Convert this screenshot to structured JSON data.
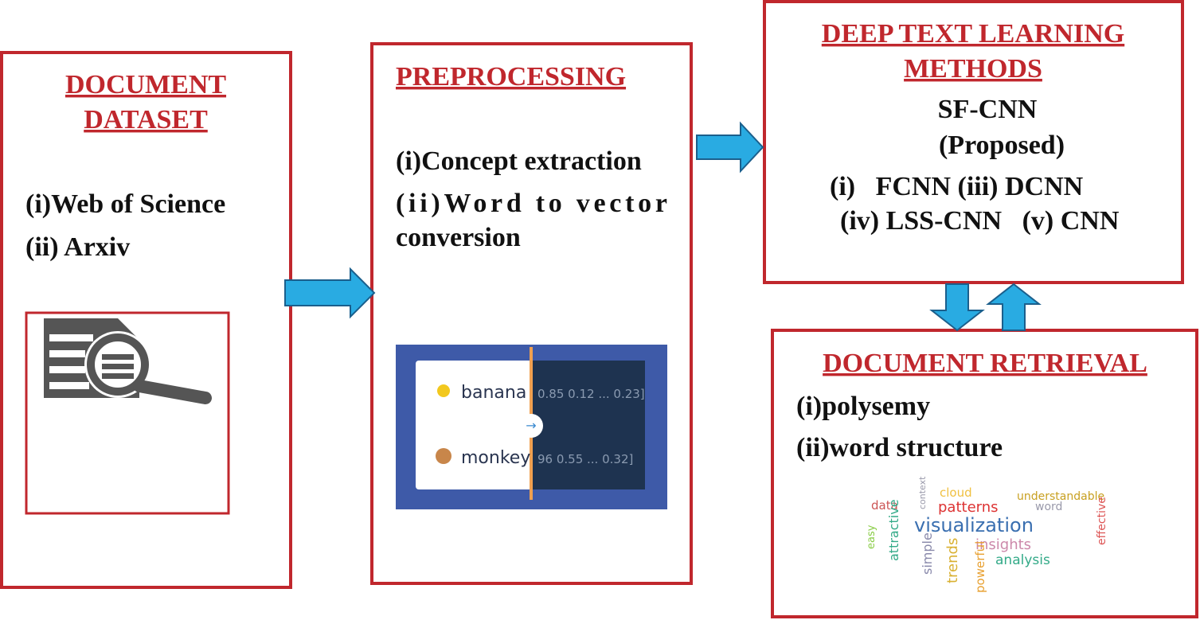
{
  "nodes": [
    {
      "title_lines": [
        "DOCUMENT",
        "DATASET"
      ],
      "items": [
        "(i)Web of Science",
        "(ii) Arxiv"
      ]
    },
    {
      "title_lines": [
        "PREPROCESSING"
      ],
      "items": [
        "(i)Concept extraction",
        "(ii)Word to vector",
        "conversion"
      ],
      "image": {
        "words": [
          "banana",
          "monkey"
        ],
        "vectors": [
          "0.85 0.12 ... 0.23]",
          "96 0.55 ... 0.32]"
        ]
      }
    },
    {
      "title_lines": [
        "DEEP TEXT LEARNING",
        "METHODS"
      ],
      "highlight": [
        "SF-CNN",
        "(Proposed)"
      ],
      "items": [
        "(i)   FCNN (iii) DCNN",
        "(iv) LSS-CNN   (v) CNN"
      ]
    },
    {
      "title_lines": [
        "DOCUMENT RETRIEVAL"
      ],
      "items": [
        "(i)polysemy",
        "(ii)word structure"
      ],
      "word_cloud": [
        "data",
        "cloud",
        "understandable",
        "patterns",
        "word",
        "visualization",
        "context",
        "attractive",
        "easy",
        "simple",
        "trends",
        "insights",
        "analysis",
        "powerful",
        "effective"
      ]
    }
  ]
}
